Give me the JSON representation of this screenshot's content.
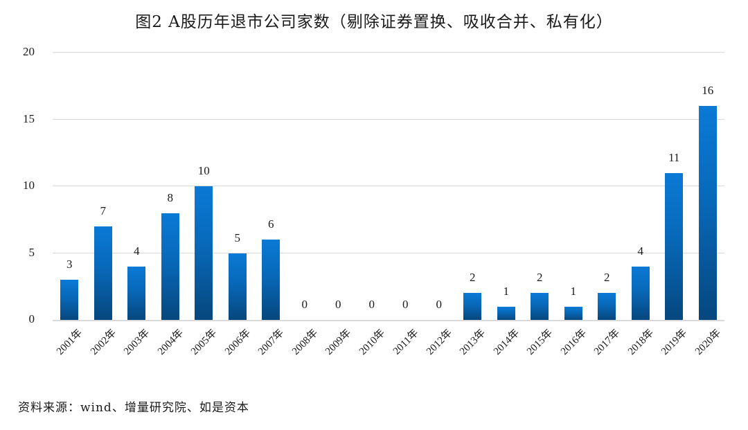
{
  "chart_data": {
    "type": "bar",
    "title": "图2  A股历年退市公司家数（剔除证券置换、吸收合并、私有化）",
    "xlabel": "",
    "ylabel": "",
    "ylim": [
      0,
      20
    ],
    "yticks": [
      0,
      5,
      10,
      15,
      20
    ],
    "grid": true,
    "legend": null,
    "categories": [
      "2001年",
      "2002年",
      "2003年",
      "2004年",
      "2005年",
      "2006年",
      "2007年",
      "2008年",
      "2009年",
      "2010年",
      "2011年",
      "2012年",
      "2013年",
      "2014年",
      "2015年",
      "2016年",
      "2017年",
      "2018年",
      "2019年",
      "2020年"
    ],
    "values": [
      3,
      7,
      4,
      8,
      10,
      5,
      6,
      0,
      0,
      0,
      0,
      0,
      2,
      1,
      2,
      1,
      2,
      4,
      11,
      16
    ],
    "data_labels": true,
    "bar_color_top": "#0a7ad6",
    "bar_color_bottom": "#06477d"
  },
  "source_note": "资料来源：wind、增量研究院、如是资本"
}
